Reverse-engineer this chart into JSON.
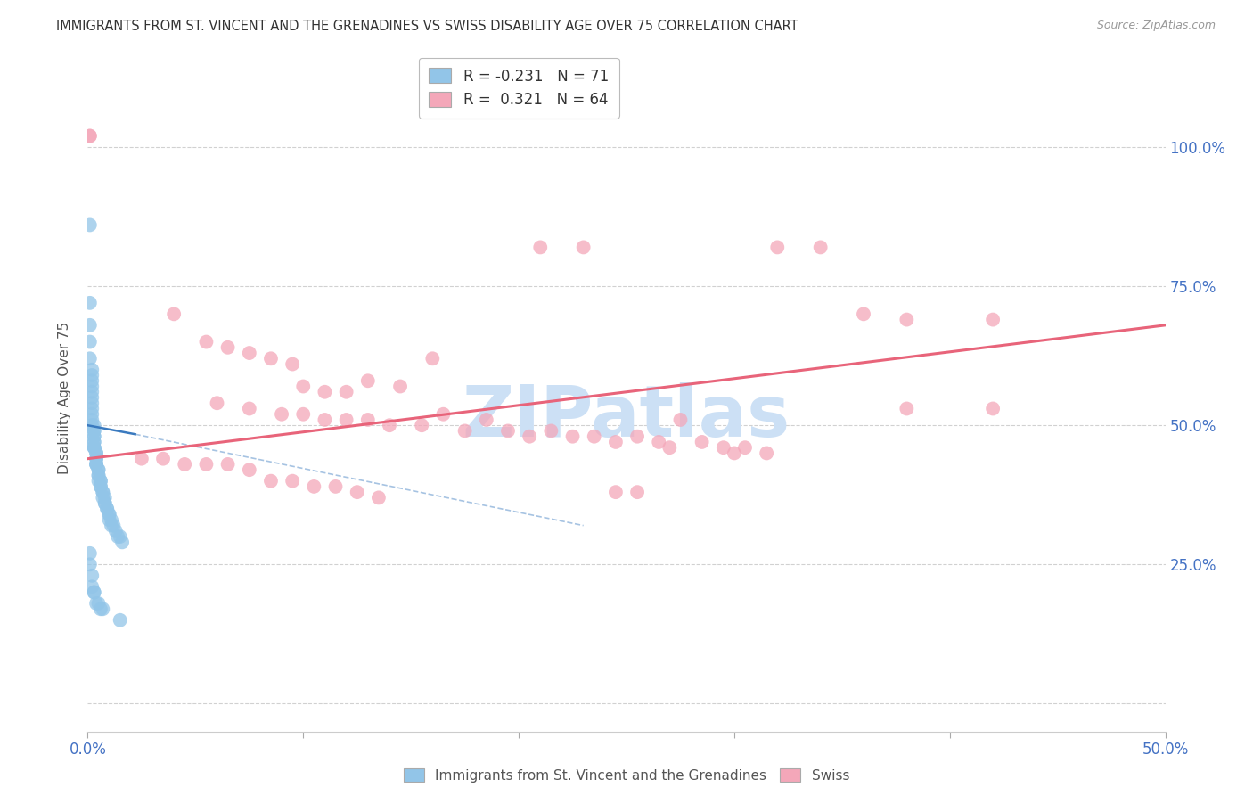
{
  "title": "IMMIGRANTS FROM ST. VINCENT AND THE GRENADINES VS SWISS DISABILITY AGE OVER 75 CORRELATION CHART",
  "source": "Source: ZipAtlas.com",
  "ylabel": "Disability Age Over 75",
  "xlim": [
    0.0,
    0.5
  ],
  "ylim": [
    -0.05,
    1.15
  ],
  "blue_R": -0.231,
  "blue_N": 71,
  "pink_R": 0.321,
  "pink_N": 64,
  "blue_color": "#92c5e8",
  "pink_color": "#f4a7b9",
  "blue_line_color": "#3a7abf",
  "pink_line_color": "#e8647a",
  "grid_color": "#cccccc",
  "axis_label_color": "#4472c4",
  "blue_scatter_x": [
    0.001,
    0.001,
    0.001,
    0.001,
    0.001,
    0.002,
    0.002,
    0.002,
    0.002,
    0.002,
    0.002,
    0.002,
    0.002,
    0.002,
    0.002,
    0.002,
    0.003,
    0.003,
    0.003,
    0.003,
    0.003,
    0.003,
    0.003,
    0.003,
    0.003,
    0.003,
    0.004,
    0.004,
    0.004,
    0.004,
    0.004,
    0.004,
    0.004,
    0.005,
    0.005,
    0.005,
    0.005,
    0.005,
    0.006,
    0.006,
    0.006,
    0.006,
    0.007,
    0.007,
    0.007,
    0.008,
    0.008,
    0.008,
    0.009,
    0.009,
    0.01,
    0.01,
    0.01,
    0.011,
    0.011,
    0.012,
    0.013,
    0.014,
    0.015,
    0.016,
    0.001,
    0.001,
    0.002,
    0.002,
    0.003,
    0.003,
    0.004,
    0.005,
    0.006,
    0.007,
    0.015
  ],
  "blue_scatter_y": [
    0.86,
    0.72,
    0.68,
    0.65,
    0.62,
    0.6,
    0.59,
    0.58,
    0.57,
    0.56,
    0.55,
    0.54,
    0.53,
    0.52,
    0.51,
    0.5,
    0.5,
    0.49,
    0.49,
    0.48,
    0.48,
    0.47,
    0.47,
    0.46,
    0.46,
    0.46,
    0.45,
    0.45,
    0.44,
    0.44,
    0.43,
    0.43,
    0.43,
    0.42,
    0.42,
    0.41,
    0.41,
    0.4,
    0.4,
    0.4,
    0.39,
    0.39,
    0.38,
    0.38,
    0.37,
    0.37,
    0.36,
    0.36,
    0.35,
    0.35,
    0.34,
    0.34,
    0.33,
    0.33,
    0.32,
    0.32,
    0.31,
    0.3,
    0.3,
    0.29,
    0.27,
    0.25,
    0.23,
    0.21,
    0.2,
    0.2,
    0.18,
    0.18,
    0.17,
    0.17,
    0.15
  ],
  "pink_scatter_x": [
    0.001,
    0.001,
    0.21,
    0.23,
    0.32,
    0.34,
    0.36,
    0.38,
    0.42,
    0.04,
    0.055,
    0.065,
    0.075,
    0.085,
    0.095,
    0.1,
    0.11,
    0.12,
    0.13,
    0.145,
    0.16,
    0.06,
    0.075,
    0.09,
    0.1,
    0.11,
    0.12,
    0.13,
    0.14,
    0.155,
    0.165,
    0.175,
    0.185,
    0.195,
    0.205,
    0.215,
    0.225,
    0.235,
    0.245,
    0.255,
    0.265,
    0.275,
    0.285,
    0.295,
    0.305,
    0.315,
    0.27,
    0.3,
    0.38,
    0.42,
    0.025,
    0.035,
    0.045,
    0.055,
    0.065,
    0.075,
    0.085,
    0.095,
    0.105,
    0.115,
    0.125,
    0.135,
    0.245,
    0.255
  ],
  "pink_scatter_y": [
    1.02,
    1.02,
    0.82,
    0.82,
    0.82,
    0.82,
    0.7,
    0.69,
    0.69,
    0.7,
    0.65,
    0.64,
    0.63,
    0.62,
    0.61,
    0.57,
    0.56,
    0.56,
    0.58,
    0.57,
    0.62,
    0.54,
    0.53,
    0.52,
    0.52,
    0.51,
    0.51,
    0.51,
    0.5,
    0.5,
    0.52,
    0.49,
    0.51,
    0.49,
    0.48,
    0.49,
    0.48,
    0.48,
    0.47,
    0.48,
    0.47,
    0.51,
    0.47,
    0.46,
    0.46,
    0.45,
    0.46,
    0.45,
    0.53,
    0.53,
    0.44,
    0.44,
    0.43,
    0.43,
    0.43,
    0.42,
    0.4,
    0.4,
    0.39,
    0.39,
    0.38,
    0.37,
    0.38,
    0.38
  ],
  "watermark_text": "ZIPatlas",
  "watermark_color": "#cce0f5"
}
